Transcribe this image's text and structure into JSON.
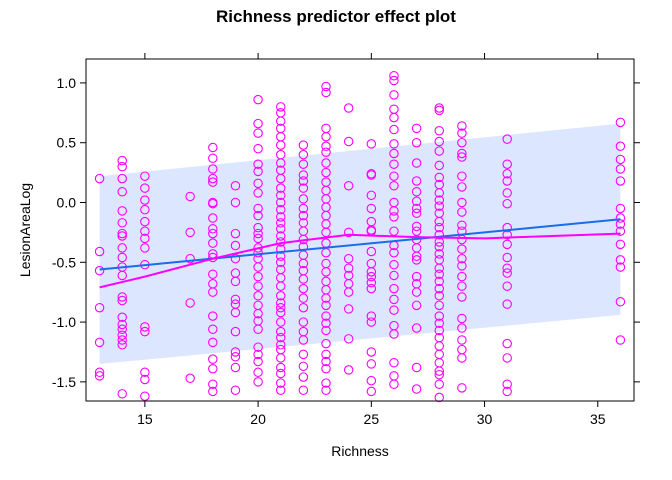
{
  "chart_data": {
    "type": "scatter",
    "title": "Richness predictor effect plot",
    "xlabel": "Richness",
    "ylabel": "LesionAreaLog",
    "xlim": [
      12.4,
      36.6
    ],
    "ylim": [
      -1.66,
      1.2
    ],
    "x_ticks": [
      15,
      20,
      25,
      30,
      35
    ],
    "y_ticks": [
      -1.5,
      -1.0,
      -0.5,
      0.0,
      0.5,
      1.0
    ],
    "x_tick_labels": [
      "15",
      "20",
      "25",
      "30",
      "35"
    ],
    "y_tick_labels": [
      "-1.5",
      "-1.0",
      "-0.5",
      "0.0",
      "0.5",
      "1.0"
    ],
    "grid": false,
    "colors": {
      "points": "#FF00FF",
      "smooth": "#FF00FF",
      "fit": "#1A6CE8",
      "band": "#DCE6FF",
      "axis": "#000000"
    },
    "fit": {
      "x": [
        13,
        36
      ],
      "y": [
        -0.56,
        -0.14
      ]
    },
    "band": {
      "x": [
        13,
        36
      ],
      "lower": [
        -1.35,
        -0.94
      ],
      "upper": [
        0.22,
        0.66
      ]
    },
    "smooth": {
      "x": [
        13,
        15,
        18,
        21,
        24,
        27,
        30,
        33,
        36
      ],
      "y": [
        -0.71,
        -0.62,
        -0.47,
        -0.34,
        -0.27,
        -0.29,
        -0.3,
        -0.28,
        -0.26
      ]
    },
    "series": [
      {
        "x": 13,
        "y": [
          0.2,
          -0.41,
          -0.57,
          -0.88,
          -1.17,
          -1.42,
          -1.45
        ]
      },
      {
        "x": 14,
        "y": [
          0.35,
          0.3,
          0.2,
          0.09,
          -0.07,
          -0.17,
          -0.26,
          -0.28,
          -0.38,
          -0.46,
          -0.54,
          -0.61,
          -0.79,
          -0.82,
          -0.96,
          -1.02,
          -1.06,
          -1.11,
          -1.15,
          -1.19,
          -1.6
        ]
      },
      {
        "x": 15,
        "y": [
          0.22,
          0.12,
          0.02,
          -0.06,
          -0.16,
          -0.24,
          -0.3,
          -0.38,
          -0.52,
          -1.04,
          -1.08,
          -1.42,
          -1.48,
          -1.62
        ]
      },
      {
        "x": 17,
        "y": [
          0.05,
          -0.25,
          -0.47,
          -0.84,
          -1.47
        ]
      },
      {
        "x": 18,
        "y": [
          0.46,
          0.37,
          0.28,
          0.2,
          0.17,
          0.0,
          -0.01,
          -0.13,
          -0.22,
          -0.26,
          -0.34,
          -0.43,
          -0.46,
          -0.6,
          -0.68,
          -0.75,
          -0.95,
          -1.06,
          -1.17,
          -1.31,
          -1.39,
          -1.52,
          -1.58
        ]
      },
      {
        "x": 19,
        "y": [
          0.14,
          0.0,
          -0.26,
          -0.36,
          -0.47,
          -0.59,
          -0.66,
          -0.81,
          -0.85,
          -0.92,
          -1.08,
          -1.25,
          -1.29,
          -1.38,
          -1.57
        ]
      },
      {
        "x": 20,
        "y": [
          0.86,
          0.66,
          0.58,
          0.45,
          0.32,
          0.26,
          0.16,
          0.08,
          -0.05,
          -0.11,
          -0.21,
          -0.26,
          -0.3,
          -0.38,
          -0.42,
          -0.47,
          -0.54,
          -0.62,
          -0.7,
          -0.78,
          -0.86,
          -0.93,
          -0.99,
          -1.06,
          -1.21,
          -1.27,
          -1.33,
          -1.42,
          -1.5
        ]
      },
      {
        "x": 21,
        "y": [
          0.8,
          0.75,
          0.68,
          0.62,
          0.55,
          0.48,
          0.4,
          0.33,
          0.27,
          0.2,
          0.12,
          0.06,
          0.0,
          -0.06,
          -0.12,
          -0.17,
          -0.22,
          -0.28,
          -0.33,
          -0.39,
          -0.45,
          -0.5,
          -0.56,
          -0.63,
          -0.7,
          -0.78,
          -0.84,
          -0.88,
          -0.92,
          -1.0,
          -1.08,
          -1.13,
          -1.19,
          -1.23,
          -1.3,
          -1.38,
          -1.43,
          -1.51,
          -1.57
        ]
      },
      {
        "x": 22,
        "y": [
          0.48,
          0.4,
          0.32,
          0.23,
          0.18,
          0.12,
          0.03,
          -0.05,
          -0.11,
          -0.17,
          -0.24,
          -0.31,
          -0.37,
          -0.44,
          -0.51,
          -0.57,
          -0.64,
          -0.72,
          -0.8,
          -0.88,
          -1.0,
          -1.08,
          -1.15,
          -1.27,
          -1.37,
          -1.46,
          -1.57
        ]
      },
      {
        "x": 23,
        "y": [
          0.97,
          0.92,
          0.62,
          0.55,
          0.47,
          0.42,
          0.33,
          0.25,
          0.17,
          0.1,
          0.03,
          -0.04,
          -0.11,
          -0.18,
          -0.25,
          -0.34,
          -0.42,
          -0.51,
          -0.58,
          -0.66,
          -0.73,
          -0.8,
          -0.86,
          -0.95,
          -1.01,
          -1.07,
          -1.18,
          -1.27,
          -1.33,
          -1.39,
          -1.51,
          -1.57
        ]
      },
      {
        "x": 24,
        "y": [
          0.79,
          0.51,
          0.14,
          -0.25,
          -0.47,
          -0.55,
          -0.61,
          -0.68,
          -0.75,
          -0.89,
          -1.14,
          -1.4
        ]
      },
      {
        "x": 25,
        "y": [
          0.49,
          0.24,
          0.23,
          0.06,
          -0.05,
          -0.16,
          -0.23,
          -0.24,
          -0.41,
          -0.51,
          -0.58,
          -0.62,
          -0.67,
          -0.72,
          -0.95,
          -1.0,
          -1.25,
          -1.35,
          -1.49,
          -1.58
        ]
      },
      {
        "x": 26,
        "y": [
          1.06,
          1.02,
          0.9,
          0.78,
          0.71,
          0.61,
          0.49,
          0.41,
          0.32,
          0.22,
          0.14,
          0.0,
          -0.07,
          -0.12,
          -0.24,
          -0.36,
          -0.42,
          -0.52,
          -0.61,
          -0.72,
          -0.81,
          -0.9,
          -1.03,
          -1.1,
          -1.34,
          -1.45,
          -1.52
        ]
      },
      {
        "x": 27,
        "y": [
          0.62,
          0.5,
          0.33,
          0.18,
          0.09,
          0.01,
          -0.05,
          -0.09,
          -0.2,
          -0.24,
          -0.31,
          -0.38,
          -0.45,
          -0.48,
          -0.62,
          -0.68,
          -0.75,
          -0.86,
          -1.05,
          -1.38,
          -1.56
        ]
      },
      {
        "x": 28,
        "y": [
          0.79,
          0.77,
          0.6,
          0.51,
          0.43,
          0.31,
          0.21,
          0.15,
          0.08,
          0.02,
          -0.03,
          -0.09,
          -0.16,
          -0.21,
          -0.27,
          -0.33,
          -0.37,
          -0.43,
          -0.48,
          -0.55,
          -0.6,
          -0.66,
          -0.72,
          -0.78,
          -0.86,
          -0.95,
          -1.01,
          -1.07,
          -1.13,
          -1.2,
          -1.27,
          -1.34,
          -1.41,
          -1.44,
          -1.52,
          -1.63
        ]
      },
      {
        "x": 29,
        "y": [
          0.64,
          0.58,
          0.5,
          0.41,
          0.38,
          0.22,
          0.13,
          0.0,
          -0.08,
          -0.19,
          -0.24,
          -0.31,
          -0.39,
          -0.47,
          -0.53,
          -0.62,
          -0.7,
          -0.79,
          -0.97,
          -1.05,
          -1.15,
          -1.23,
          -1.3,
          -1.55
        ]
      },
      {
        "x": 31,
        "y": [
          0.53,
          0.32,
          0.24,
          0.18,
          0.08,
          -0.01,
          -0.21,
          -0.27,
          -0.35,
          -0.46,
          -0.55,
          -0.59,
          -0.7,
          -0.85,
          -1.18,
          -1.3,
          -1.52,
          -1.58
        ]
      },
      {
        "x": 36,
        "y": [
          0.67,
          0.47,
          0.36,
          0.28,
          0.18,
          -0.05,
          -0.13,
          -0.18,
          -0.24,
          -0.35,
          -0.48,
          -0.54,
          -0.83,
          -1.15
        ]
      }
    ]
  }
}
